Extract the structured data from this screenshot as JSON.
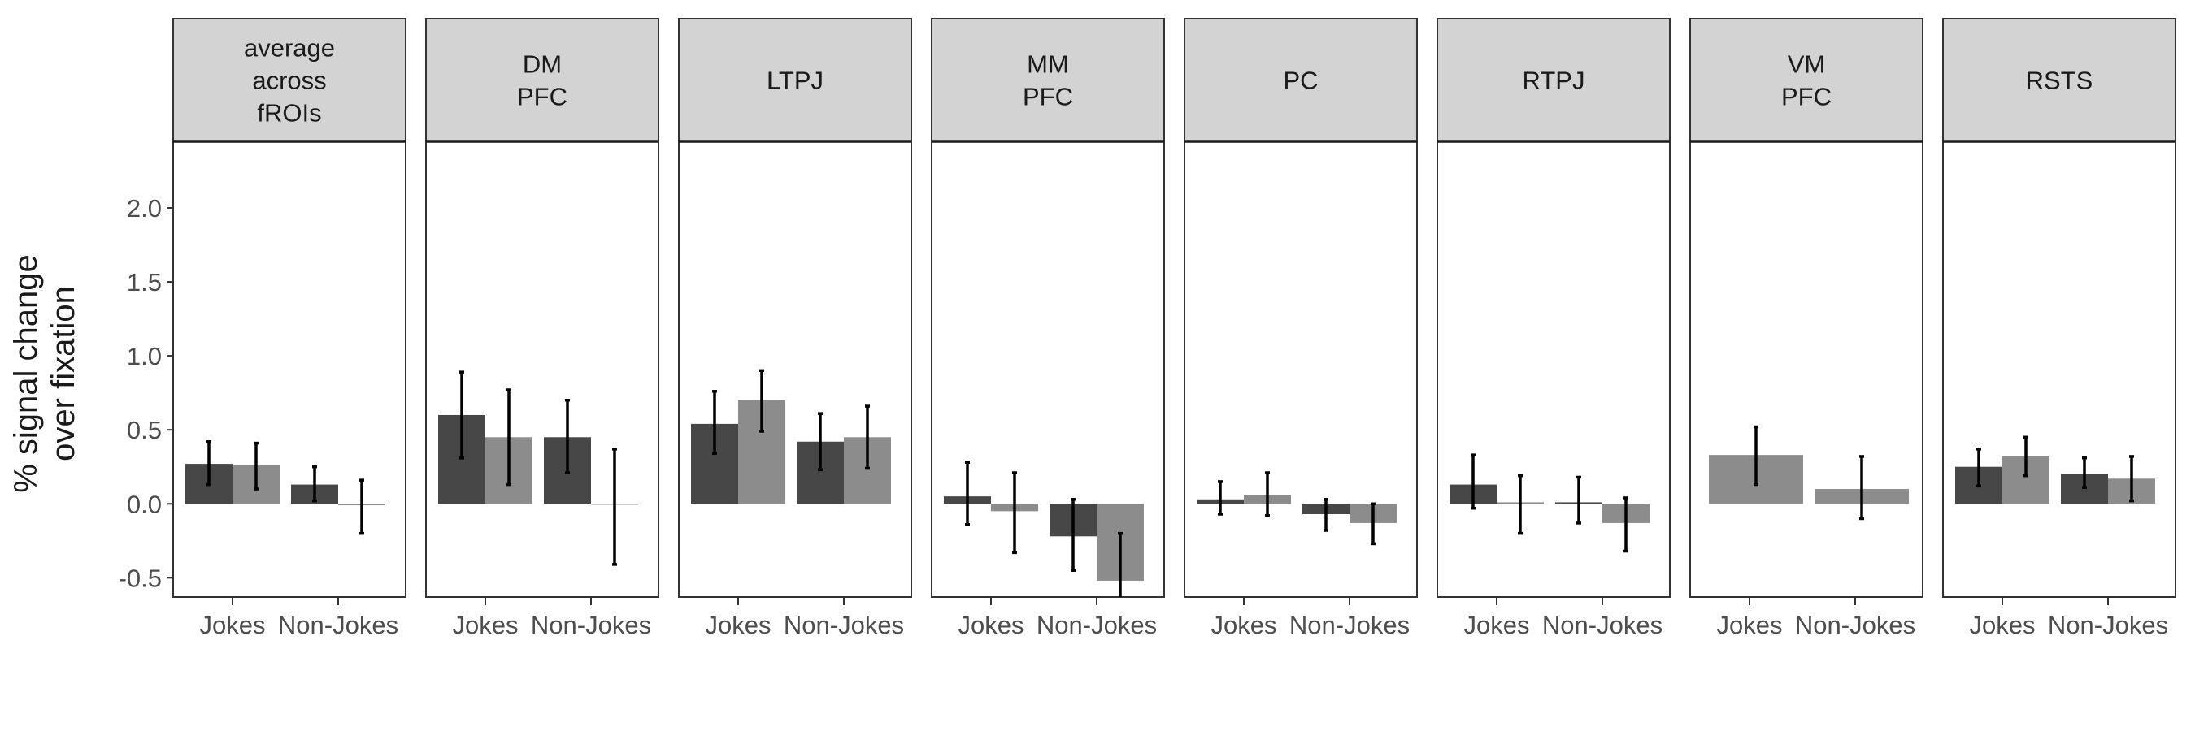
{
  "chart_data": {
    "type": "bar",
    "facet_by": "fROI",
    "ylabel_lines": [
      "% signal change",
      "over fixation"
    ],
    "ylim": [
      -0.63,
      2.45
    ],
    "yticks": [
      "-0.5",
      "0.0",
      "0.5",
      "1.0",
      "1.5",
      "2.0"
    ],
    "categories": [
      "Jokes",
      "Non-Jokes"
    ],
    "grid": false,
    "legend": "none",
    "colors": {
      "first_bar": "#474747",
      "second_bar": "#8c8c8c",
      "strip_fill": "#d3d3d3",
      "frame": "#333333"
    },
    "panels": [
      {
        "title_lines": [
          "average",
          "across",
          "fROIs"
        ],
        "bars": [
          [
            {
              "y": 0.27,
              "lo": 0.13,
              "hi": 0.42
            },
            {
              "y": 0.26,
              "lo": 0.1,
              "hi": 0.41
            }
          ],
          [
            {
              "y": 0.13,
              "lo": 0.02,
              "hi": 0.25
            },
            {
              "y": -0.01,
              "lo": -0.2,
              "hi": 0.16
            }
          ]
        ]
      },
      {
        "title_lines": [
          "DM",
          "PFC"
        ],
        "bars": [
          [
            {
              "y": 0.6,
              "lo": 0.31,
              "hi": 0.89
            },
            {
              "y": 0.45,
              "lo": 0.13,
              "hi": 0.77
            }
          ],
          [
            {
              "y": 0.45,
              "lo": 0.21,
              "hi": 0.7
            },
            {
              "y": 0.0,
              "lo": -0.41,
              "hi": 0.37
            }
          ]
        ]
      },
      {
        "title_lines": [
          "LTPJ"
        ],
        "bars": [
          [
            {
              "y": 0.54,
              "lo": 0.34,
              "hi": 0.76
            },
            {
              "y": 0.7,
              "lo": 0.49,
              "hi": 0.9
            }
          ],
          [
            {
              "y": 0.42,
              "lo": 0.23,
              "hi": 0.61
            },
            {
              "y": 0.45,
              "lo": 0.24,
              "hi": 0.66
            }
          ]
        ]
      },
      {
        "title_lines": [
          "MM",
          "PFC"
        ],
        "bars": [
          [
            {
              "y": 0.05,
              "lo": -0.14,
              "hi": 0.28
            },
            {
              "y": -0.05,
              "lo": -0.33,
              "hi": 0.21
            }
          ],
          [
            {
              "y": -0.22,
              "lo": -0.45,
              "hi": 0.03
            },
            {
              "y": -0.52,
              "lo": -0.8,
              "hi": -0.2
            }
          ]
        ]
      },
      {
        "title_lines": [
          "PC"
        ],
        "bars": [
          [
            {
              "y": 0.03,
              "lo": -0.07,
              "hi": 0.15
            },
            {
              "y": 0.06,
              "lo": -0.08,
              "hi": 0.21
            }
          ],
          [
            {
              "y": -0.07,
              "lo": -0.18,
              "hi": 0.03
            },
            {
              "y": -0.13,
              "lo": -0.27,
              "hi": 0.0
            }
          ]
        ]
      },
      {
        "title_lines": [
          "RTPJ"
        ],
        "bars": [
          [
            {
              "y": 0.13,
              "lo": -0.03,
              "hi": 0.33
            },
            {
              "y": 0.01,
              "lo": -0.2,
              "hi": 0.19
            }
          ],
          [
            {
              "y": 0.01,
              "lo": -0.13,
              "hi": 0.18
            },
            {
              "y": -0.13,
              "lo": -0.32,
              "hi": 0.04
            }
          ]
        ]
      },
      {
        "title_lines": [
          "VM",
          "PFC"
        ],
        "bars": [
          [
            {
              "y": 0.33,
              "lo": 0.13,
              "hi": 0.52
            }
          ],
          [
            {
              "y": 0.1,
              "lo": -0.1,
              "hi": 0.32
            }
          ]
        ]
      },
      {
        "title_lines": [
          "RSTS"
        ],
        "bars": [
          [
            {
              "y": 0.25,
              "lo": 0.12,
              "hi": 0.37
            },
            {
              "y": 0.32,
              "lo": 0.19,
              "hi": 0.45
            }
          ],
          [
            {
              "y": 0.2,
              "lo": 0.11,
              "hi": 0.31
            },
            {
              "y": 0.17,
              "lo": 0.02,
              "hi": 0.32
            }
          ]
        ]
      }
    ]
  }
}
